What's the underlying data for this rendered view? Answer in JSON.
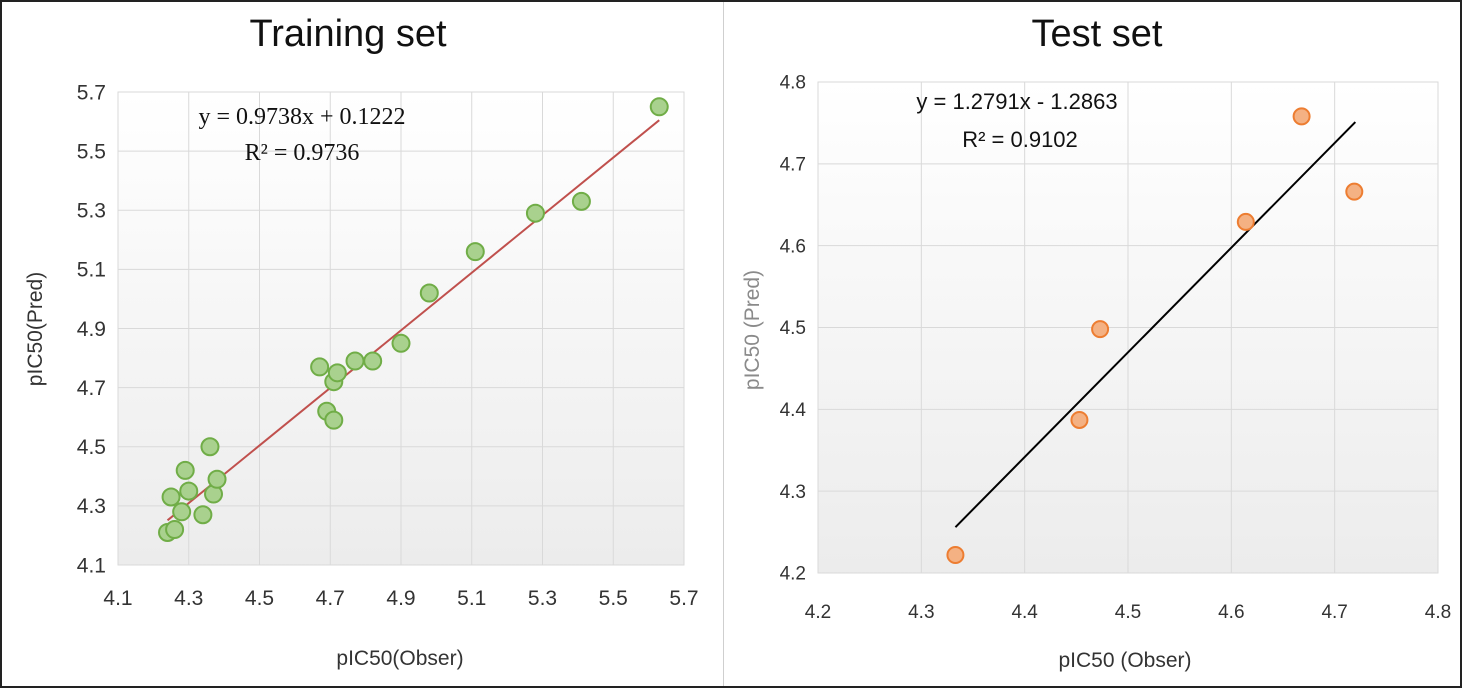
{
  "chart_data": [
    {
      "type": "scatter",
      "title": "Training set",
      "xlabel": "pIC50(Obser)",
      "ylabel": "pIC50(Pred)",
      "xlim": [
        4.1,
        5.7
      ],
      "ylim": [
        4.1,
        5.7
      ],
      "xticks": [
        "4.1",
        "4.3",
        "4.5",
        "4.7",
        "4.9",
        "5.1",
        "5.3",
        "5.5",
        "5.7"
      ],
      "yticks": [
        "4.1",
        "4.3",
        "4.5",
        "4.7",
        "4.9",
        "5.1",
        "5.3",
        "5.5",
        "5.7"
      ],
      "grid": true,
      "point_color": "#a9d18e",
      "point_edge": "#70ad47",
      "line_color": "#c0504d",
      "trendline": {
        "slope": 0.9738,
        "intercept": 0.1222,
        "x_range": [
          4.24,
          5.63
        ]
      },
      "equation": "y = 0.9738x + 0.1222",
      "r2": "R² = 0.9736",
      "points": [
        {
          "x": 4.24,
          "y": 4.21
        },
        {
          "x": 4.26,
          "y": 4.22
        },
        {
          "x": 4.28,
          "y": 4.28
        },
        {
          "x": 4.25,
          "y": 4.33
        },
        {
          "x": 4.3,
          "y": 4.35
        },
        {
          "x": 4.29,
          "y": 4.42
        },
        {
          "x": 4.34,
          "y": 4.27
        },
        {
          "x": 4.37,
          "y": 4.34
        },
        {
          "x": 4.38,
          "y": 4.39
        },
        {
          "x": 4.36,
          "y": 4.5
        },
        {
          "x": 4.67,
          "y": 4.77
        },
        {
          "x": 4.69,
          "y": 4.62
        },
        {
          "x": 4.71,
          "y": 4.59
        },
        {
          "x": 4.71,
          "y": 4.72
        },
        {
          "x": 4.72,
          "y": 4.75
        },
        {
          "x": 4.77,
          "y": 4.79
        },
        {
          "x": 4.82,
          "y": 4.79
        },
        {
          "x": 4.9,
          "y": 4.85
        },
        {
          "x": 4.98,
          "y": 5.02
        },
        {
          "x": 5.11,
          "y": 5.16
        },
        {
          "x": 5.28,
          "y": 5.29
        },
        {
          "x": 5.41,
          "y": 5.33
        },
        {
          "x": 5.63,
          "y": 5.65
        }
      ]
    },
    {
      "type": "scatter",
      "title": "Test set",
      "xlabel": "pIC50 (Obser)",
      "ylabel": "pIC50 (Pred)",
      "xlim": [
        4.2,
        4.8
      ],
      "ylim": [
        4.2,
        4.8
      ],
      "xticks": [
        "4.2",
        "4.3",
        "4.4",
        "4.5",
        "4.6",
        "4.7",
        "4.8"
      ],
      "yticks": [
        "4.2",
        "4.3",
        "4.4",
        "4.5",
        "4.6",
        "4.7",
        "4.8"
      ],
      "grid": true,
      "point_color": "#f4b183",
      "point_edge": "#ed7d31",
      "line_color": "#000000",
      "trendline": {
        "slope": 1.2791,
        "intercept": -1.2863,
        "x_range": [
          4.333,
          4.72
        ]
      },
      "equation": "y = 1.2791x - 1.2863",
      "r2": "R² = 0.9102",
      "points": [
        {
          "x": 4.333,
          "y": 4.222
        },
        {
          "x": 4.453,
          "y": 4.387
        },
        {
          "x": 4.473,
          "y": 4.498
        },
        {
          "x": 4.614,
          "y": 4.629
        },
        {
          "x": 4.668,
          "y": 4.758
        },
        {
          "x": 4.719,
          "y": 4.666
        }
      ]
    }
  ]
}
